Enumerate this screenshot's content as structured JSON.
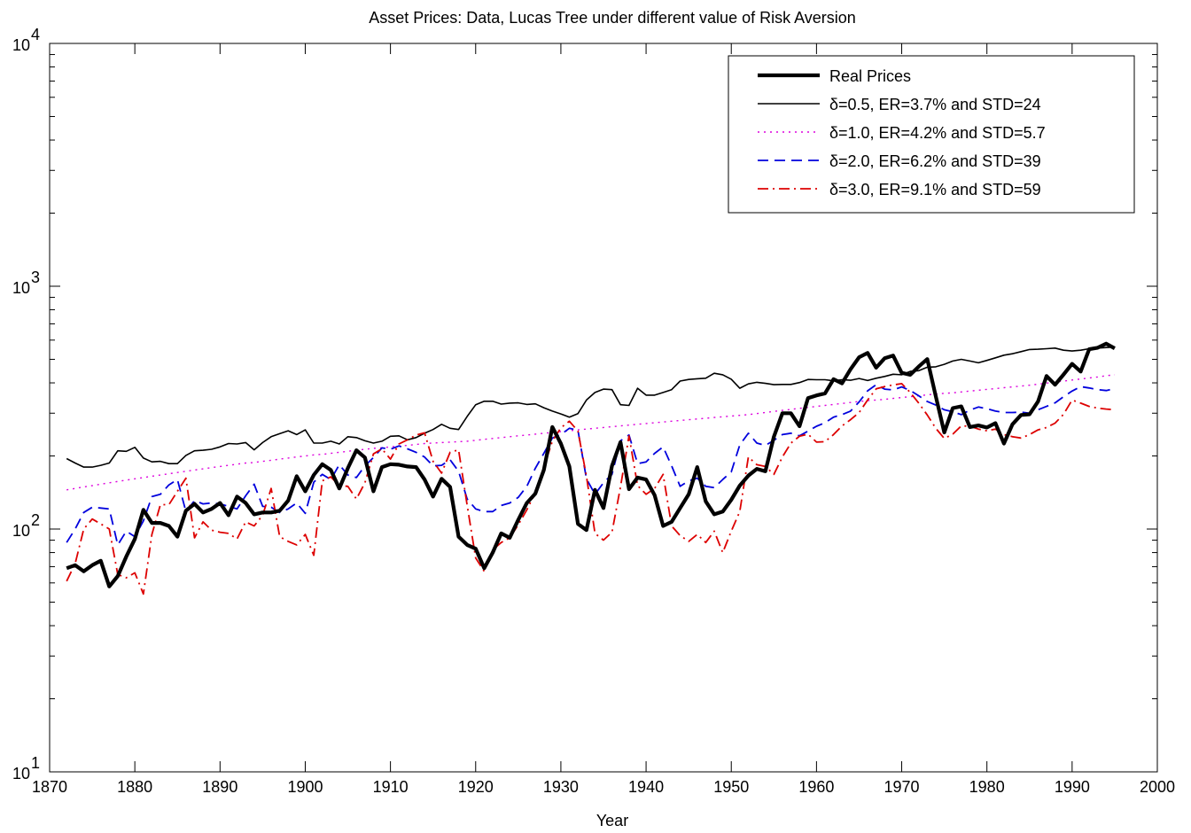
{
  "chart_data": {
    "type": "line",
    "title": "Asset Prices: Data, Lucas Tree under different value of Risk Aversion",
    "xlabel": "Year",
    "ylabel": "",
    "xlim": [
      1870,
      2000
    ],
    "ylim": [
      10,
      10000
    ],
    "yscale": "log",
    "grid": false,
    "legend_position": "top-right",
    "x_ticks": [
      1870,
      1880,
      1890,
      1900,
      1910,
      1920,
      1930,
      1940,
      1950,
      1960,
      1970,
      1980,
      1990,
      2000
    ],
    "x_tick_labels": [
      "1870",
      "1880",
      "1890",
      "1900",
      "1910",
      "1920",
      "1930",
      "1940",
      "1950",
      "1960",
      "1970",
      "1980",
      "1990",
      "2000"
    ],
    "y_ticks": [
      {
        "value": 10,
        "base": "10",
        "exp": "1"
      },
      {
        "value": 100,
        "base": "10",
        "exp": "2"
      },
      {
        "value": 1000,
        "base": "10",
        "exp": "3"
      },
      {
        "value": 10000,
        "base": "10",
        "exp": "4"
      }
    ],
    "x": [
      1872,
      1873,
      1874,
      1875,
      1876,
      1877,
      1878,
      1879,
      1880,
      1881,
      1882,
      1883,
      1884,
      1885,
      1886,
      1887,
      1888,
      1889,
      1890,
      1891,
      1892,
      1893,
      1894,
      1895,
      1896,
      1897,
      1898,
      1899,
      1900,
      1901,
      1902,
      1903,
      1904,
      1905,
      1906,
      1907,
      1908,
      1909,
      1910,
      1911,
      1912,
      1913,
      1914,
      1915,
      1916,
      1917,
      1918,
      1919,
      1920,
      1921,
      1922,
      1923,
      1924,
      1925,
      1926,
      1927,
      1928,
      1929,
      1930,
      1931,
      1932,
      1933,
      1934,
      1935,
      1936,
      1937,
      1938,
      1939,
      1940,
      1941,
      1942,
      1943,
      1944,
      1945,
      1946,
      1947,
      1948,
      1949,
      1950,
      1951,
      1952,
      1953,
      1954,
      1955,
      1956,
      1957,
      1958,
      1959,
      1960,
      1961,
      1962,
      1963,
      1964,
      1965,
      1966,
      1967,
      1968,
      1969,
      1970,
      1971,
      1972,
      1973,
      1974,
      1975,
      1976,
      1977,
      1978,
      1979,
      1980,
      1981,
      1982,
      1983,
      1984,
      1985,
      1986,
      1987,
      1988,
      1989,
      1990,
      1991,
      1992,
      1993,
      1994,
      1995
    ],
    "series": [
      {
        "name": "Real Prices",
        "color": "#000000",
        "style": "solid-thick",
        "values": [
          69,
          71,
          67,
          71,
          74,
          58,
          64,
          77,
          91,
          120,
          106,
          106,
          103,
          93,
          119,
          127,
          117,
          121,
          128,
          114,
          136,
          128,
          115,
          117,
          117,
          119,
          131,
          165,
          143,
          167,
          185,
          175,
          147,
          178,
          211,
          197,
          143,
          180,
          185,
          184,
          181,
          180,
          160,
          136,
          161,
          149,
          93,
          86,
          83,
          69,
          80,
          96,
          92,
          109,
          128,
          140,
          175,
          263,
          225,
          181,
          105,
          99,
          145,
          122,
          182,
          228,
          146,
          163,
          160,
          138,
          103,
          107,
          122,
          139,
          180,
          130,
          115,
          118,
          132,
          151,
          166,
          177,
          173,
          240,
          300,
          300,
          265,
          346,
          355,
          362,
          414,
          398,
          455,
          510,
          531,
          462,
          505,
          518,
          440,
          432,
          467,
          501,
          352,
          250,
          315,
          320,
          263,
          267,
          262,
          273,
          225,
          270,
          295,
          297,
          335,
          427,
          393,
          433,
          479,
          445,
          550,
          558,
          580,
          555
        ]
      },
      {
        "name": "δ=0.5, ER=3.7% and STD=24",
        "color": "#000000",
        "style": "solid",
        "values": [
          195,
          187,
          180,
          180,
          183,
          187,
          210,
          209,
          217,
          196,
          189,
          190,
          186,
          186,
          201,
          210,
          211,
          213,
          218,
          225,
          224,
          227,
          212,
          227,
          240,
          247,
          254,
          245,
          256,
          226,
          226,
          230,
          224,
          240,
          238,
          231,
          226,
          230,
          241,
          242,
          233,
          238,
          248,
          257,
          270,
          260,
          257,
          291,
          325,
          336,
          336,
          327,
          330,
          331,
          326,
          328,
          316,
          306,
          298,
          289,
          299,
          340,
          365,
          377,
          375,
          325,
          323,
          380,
          356,
          356,
          365,
          375,
          407,
          413,
          416,
          418,
          438,
          432,
          414,
          380,
          396,
          402,
          398,
          393,
          394,
          394,
          401,
          413,
          412,
          412,
          408,
          412,
          410,
          417,
          409,
          418,
          425,
          434,
          432,
          446,
          449,
          464,
          466,
          477,
          492,
          500,
          492,
          484,
          495,
          507,
          520,
          527,
          538,
          549,
          550,
          553,
          556,
          545,
          541,
          545,
          553,
          556,
          559,
          562
        ]
      },
      {
        "name": "δ=1.0, ER=4.2% and STD=5.7",
        "color": "#dd00dd",
        "style": "dotted",
        "values": [
          145,
          147,
          149,
          151,
          153,
          155,
          157,
          159,
          161,
          163,
          165,
          167,
          169,
          171,
          173,
          175,
          177,
          179,
          181,
          183,
          185,
          187,
          188,
          190,
          192,
          194,
          196,
          198,
          200,
          202,
          203,
          205,
          207,
          209,
          211,
          213,
          215,
          216,
          218,
          220,
          221,
          223,
          225,
          226,
          227,
          228,
          229,
          230,
          232,
          234,
          236,
          238,
          240,
          242,
          244,
          246,
          248,
          250,
          252,
          254,
          256,
          258,
          260,
          262,
          264,
          266,
          268,
          270,
          272,
          274,
          276,
          278,
          280,
          282,
          284,
          286,
          288,
          290,
          292,
          294,
          296,
          299,
          302,
          305,
          308,
          311,
          314,
          317,
          320,
          323,
          326,
          329,
          332,
          335,
          338,
          340,
          342,
          345,
          348,
          351,
          354,
          357,
          360,
          362,
          364,
          367,
          370,
          373,
          376,
          379,
          382,
          385,
          388,
          391,
          395,
          399,
          403,
          407,
          411,
          415,
          419,
          423,
          428,
          432
        ]
      },
      {
        "name": "δ=2.0, ER=6.2% and STD=39",
        "color": "#0000dd",
        "style": "dashed",
        "values": [
          88,
          100,
          117,
          123,
          122,
          121,
          86,
          98,
          93,
          108,
          136,
          139,
          152,
          160,
          118,
          131,
          127,
          128,
          127,
          124,
          121,
          137,
          153,
          124,
          123,
          117,
          121,
          128,
          116,
          156,
          168,
          160,
          184,
          167,
          163,
          182,
          197,
          216,
          213,
          220,
          214,
          207,
          198,
          182,
          183,
          193,
          173,
          133,
          121,
          118,
          118,
          125,
          128,
          135,
          150,
          178,
          205,
          237,
          245,
          260,
          255,
          161,
          139,
          155,
          168,
          231,
          244,
          186,
          189,
          205,
          218,
          182,
          150,
          158,
          162,
          150,
          148,
          160,
          172,
          222,
          248,
          226,
          221,
          232,
          245,
          248,
          242,
          253,
          265,
          274,
          289,
          296,
          306,
          334,
          371,
          393,
          377,
          374,
          385,
          372,
          354,
          335,
          324,
          310,
          304,
          296,
          309,
          318,
          313,
          306,
          302,
          302,
          303,
          300,
          310,
          320,
          331,
          351,
          370,
          386,
          381,
          375,
          372,
          379
        ]
      },
      {
        "name": "δ=3.0, ER=9.1% and STD=59",
        "color": "#dd0000",
        "style": "dashdot",
        "values": [
          61,
          72,
          100,
          110,
          105,
          100,
          65,
          63,
          66,
          54,
          95,
          126,
          126,
          143,
          162,
          92,
          107,
          99,
          97,
          96,
          91,
          107,
          103,
          114,
          147,
          93,
          89,
          86,
          95,
          78,
          158,
          164,
          151,
          150,
          133,
          155,
          204,
          214,
          194,
          224,
          233,
          244,
          249,
          190,
          170,
          207,
          212,
          125,
          76,
          67,
          82,
          88,
          92,
          104,
          120,
          141,
          180,
          230,
          261,
          278,
          253,
          165,
          96,
          90,
          97,
          149,
          242,
          151,
          139,
          147,
          168,
          103,
          94,
          89,
          95,
          88,
          98,
          80,
          98,
          118,
          198,
          184,
          181,
          168,
          198,
          226,
          241,
          246,
          228,
          229,
          245,
          266,
          282,
          302,
          340,
          378,
          386,
          392,
          397,
          365,
          330,
          295,
          260,
          236,
          246,
          266,
          265,
          258,
          254,
          258,
          245,
          240,
          237,
          245,
          256,
          262,
          273,
          297,
          340,
          330,
          320,
          315,
          312,
          310
        ]
      }
    ]
  }
}
